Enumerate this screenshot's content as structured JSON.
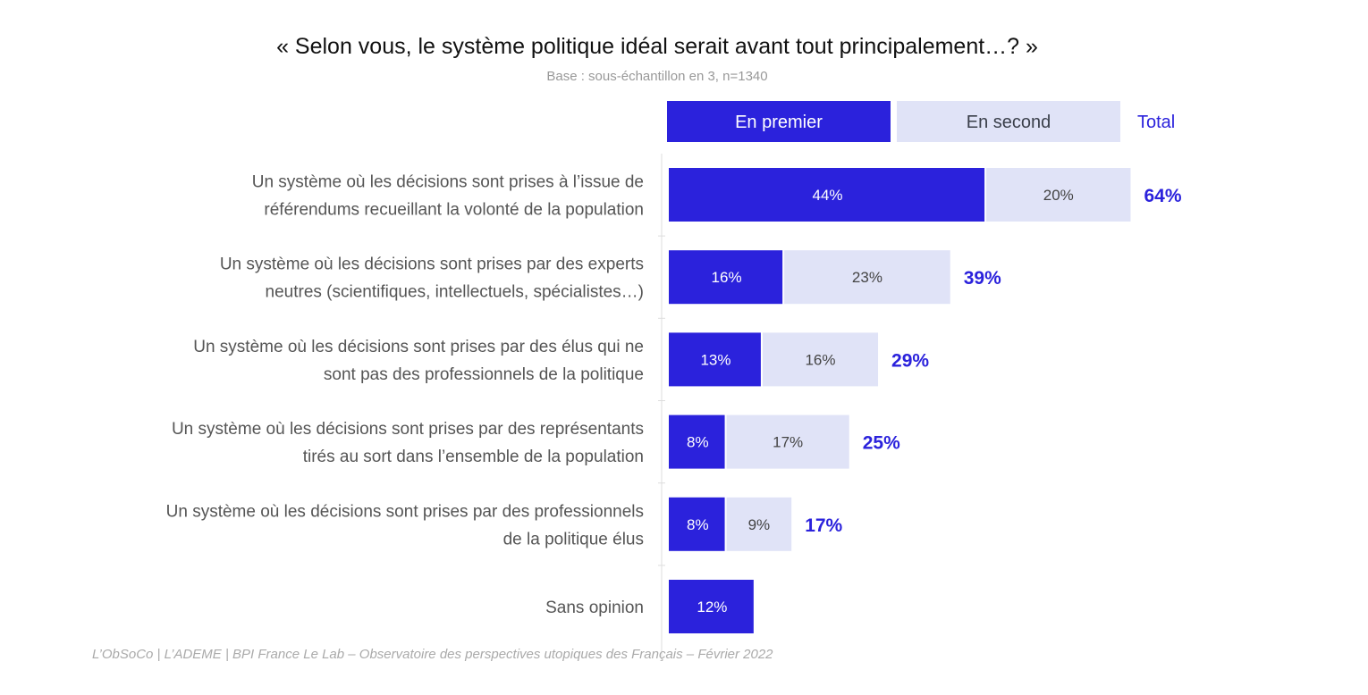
{
  "chart_data": {
    "type": "bar",
    "orientation": "horizontal",
    "stacked": true,
    "title": "« Selon vous, le système politique idéal serait avant tout principalement…? »",
    "subtitle": "Base : sous-échantillon en 3, n=1340",
    "legend": [
      "En premier",
      "En second",
      "Total"
    ],
    "legend_placement": "top",
    "categories": [
      [
        "Un système où les décisions sont prises à l’issue de",
        "référendums recueillant la volonté de la population"
      ],
      [
        "Un système où les décisions sont prises par des experts",
        "neutres (scientifiques, intellectuels, spécialistes…)"
      ],
      [
        "Un système où les décisions sont prises par des élus qui ne",
        "sont pas des professionnels de la politique"
      ],
      [
        "Un système où les décisions sont prises par des représentants",
        "tirés au sort dans l’ensemble de la population"
      ],
      [
        "Un système où les décisions sont prises par des professionnels",
        "de la politique élus"
      ],
      [
        "Sans opinion"
      ]
    ],
    "series": [
      {
        "name": "En premier",
        "values": [
          44,
          16,
          13,
          8,
          8,
          12
        ],
        "labels": [
          "44%",
          "16%",
          "13%",
          "8%",
          "8%",
          "12%"
        ],
        "color": "#2b22dc"
      },
      {
        "name": "En second",
        "values": [
          20,
          23,
          16,
          17,
          9,
          null
        ],
        "labels": [
          "20%",
          "23%",
          "16%",
          "17%",
          "9%",
          null
        ],
        "color": "#e0e3f7"
      }
    ],
    "totals": [
      "64%",
      "39%",
      "29%",
      "25%",
      "17%",
      null
    ],
    "xlim": [
      0,
      100
    ],
    "grid": false
  },
  "footer": "L’ObSoCo | L’ADEME | BPI France Le Lab – Observatoire des perspectives utopiques des Français – Février 2022"
}
